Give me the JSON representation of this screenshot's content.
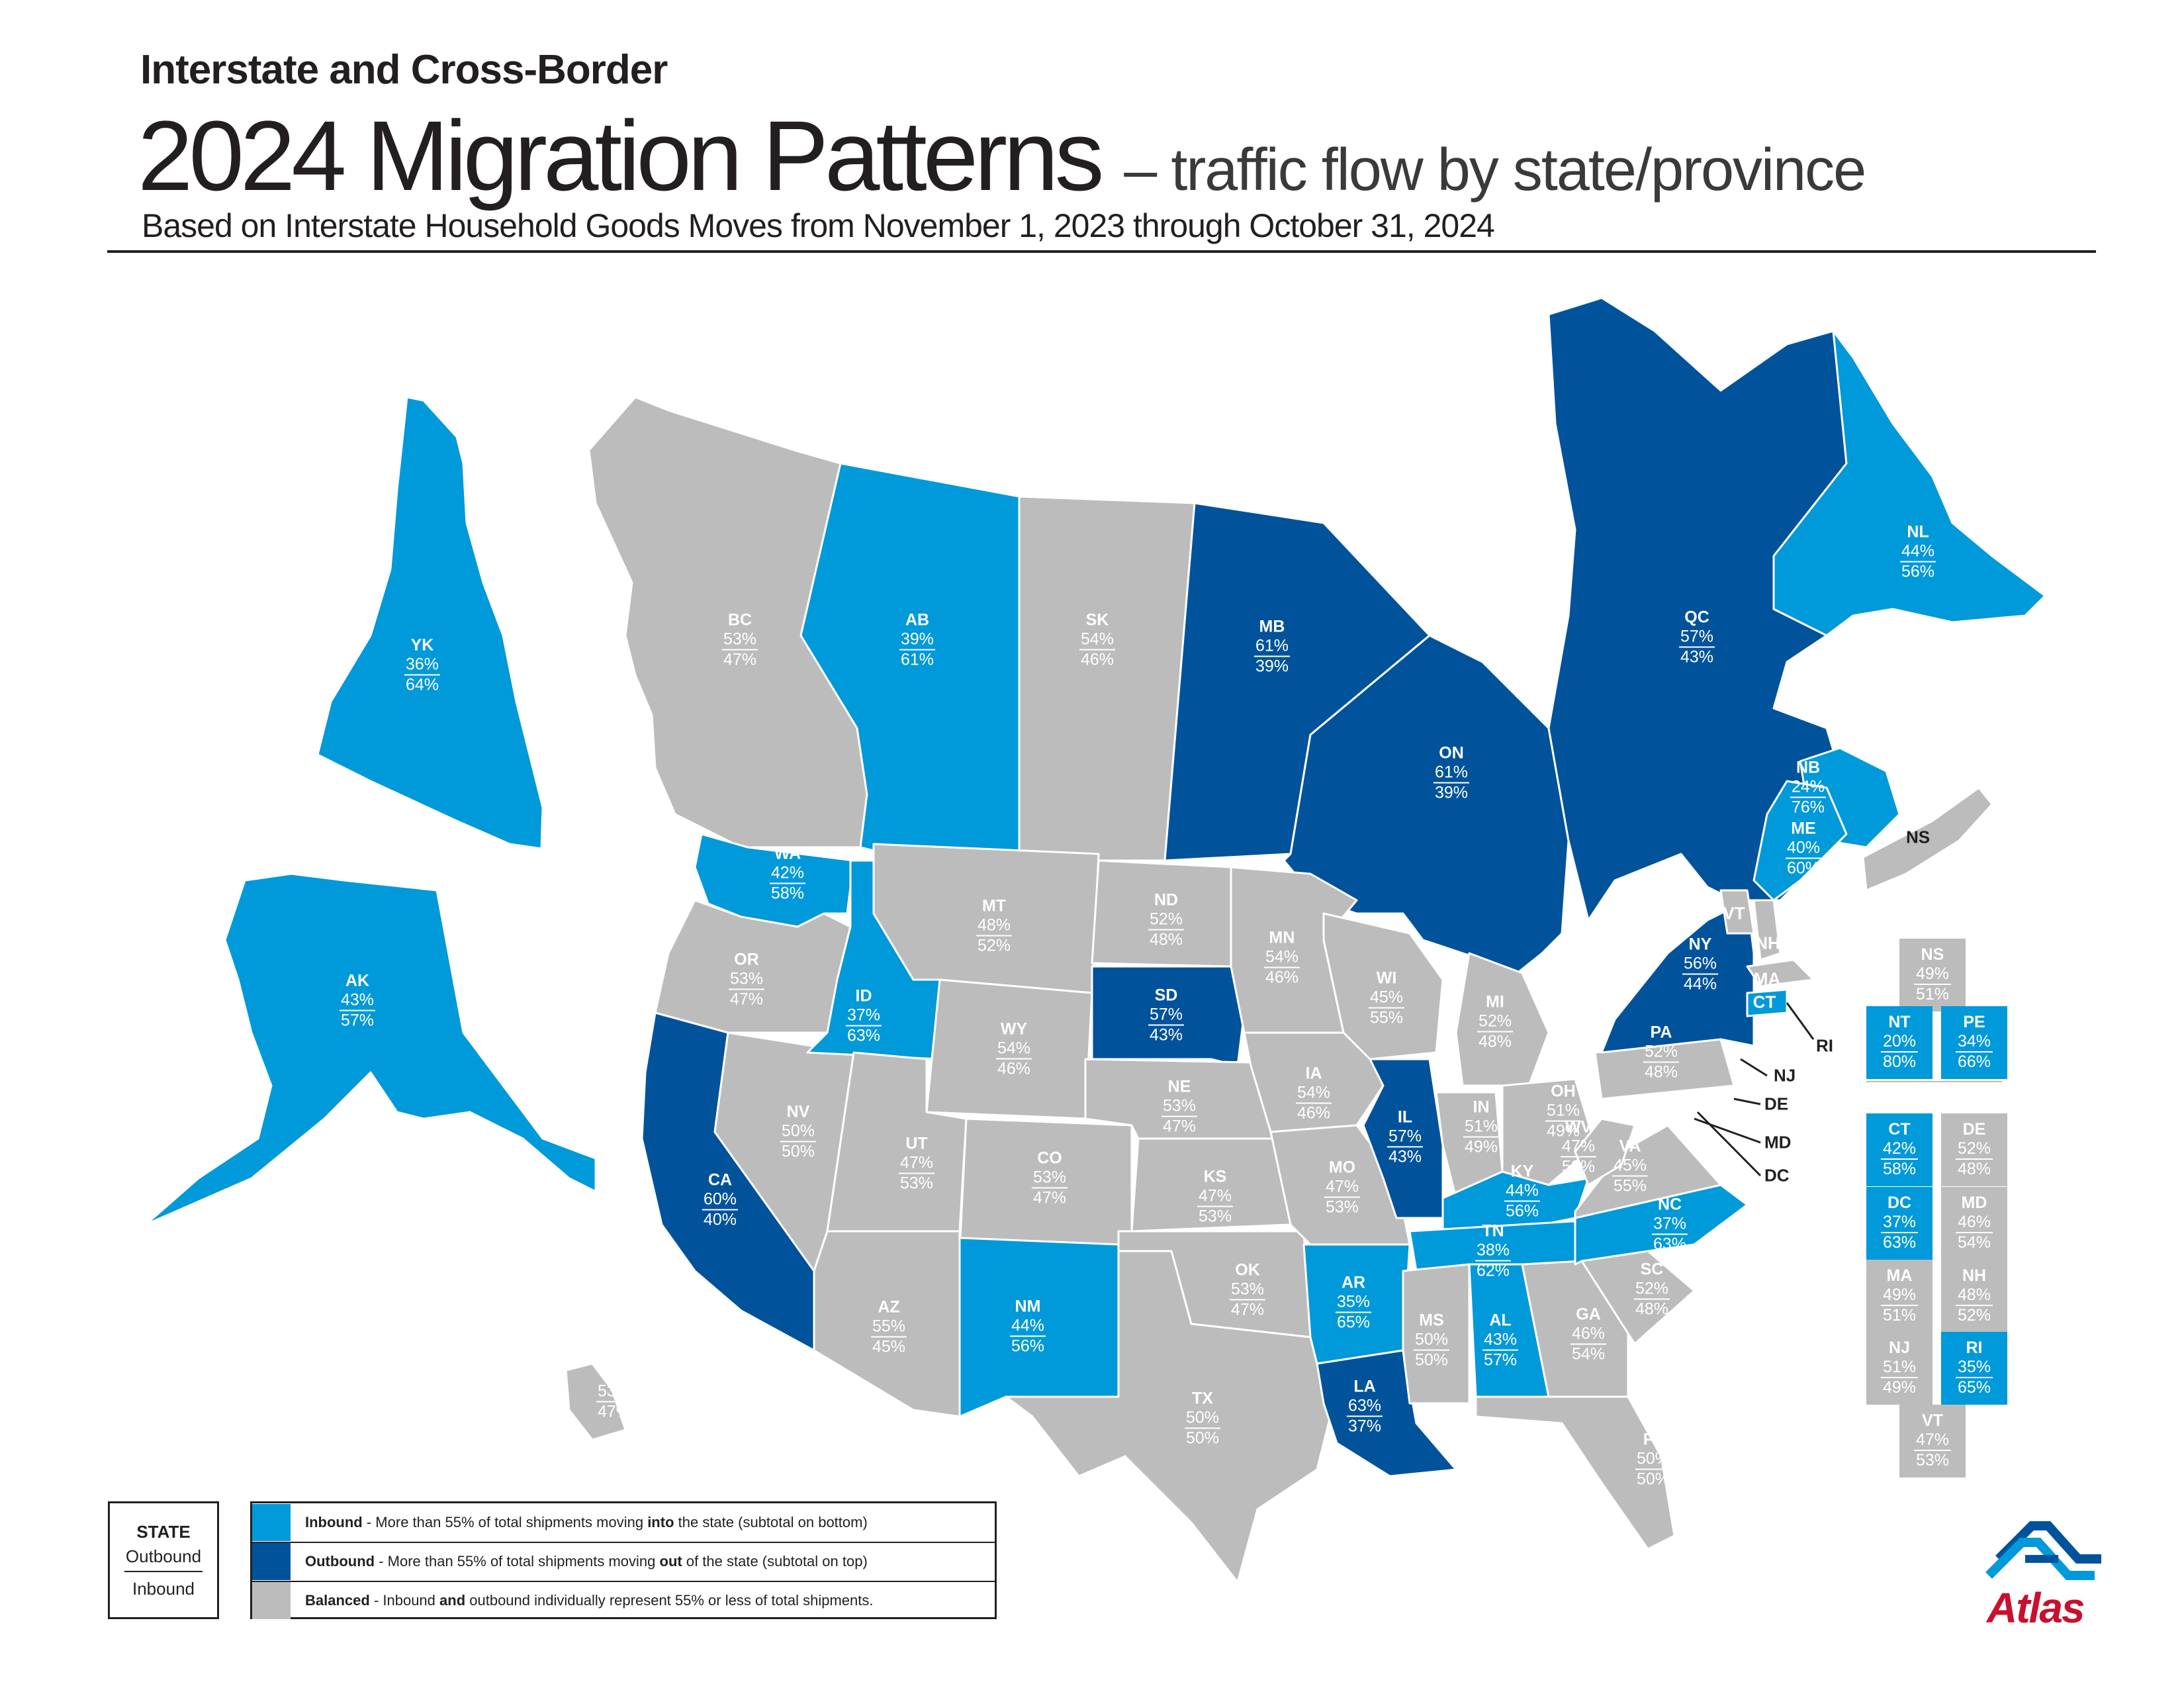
{
  "header": {
    "kicker": "Interstate and Cross-Border",
    "title": "2024 Migration Patterns",
    "title_suffix": "– traffic flow by state/province",
    "subtitle": "Based on Interstate Household Goods Moves from November 1, 2023 through October 31, 2024"
  },
  "colors": {
    "inbound": "#0099d9",
    "outbound": "#00539b",
    "balanced": "#bcbcbc",
    "brand_red": "#c8102e"
  },
  "regions": [
    {
      "abbr": "YK",
      "out": "36%",
      "in": "64%",
      "status": "inbound"
    },
    {
      "abbr": "BC",
      "out": "53%",
      "in": "47%",
      "status": "balanced"
    },
    {
      "abbr": "AB",
      "out": "39%",
      "in": "61%",
      "status": "inbound"
    },
    {
      "abbr": "SK",
      "out": "54%",
      "in": "46%",
      "status": "balanced"
    },
    {
      "abbr": "MB",
      "out": "61%",
      "in": "39%",
      "status": "outbound"
    },
    {
      "abbr": "ON",
      "out": "61%",
      "in": "39%",
      "status": "outbound"
    },
    {
      "abbr": "QC",
      "out": "57%",
      "in": "43%",
      "status": "outbound"
    },
    {
      "abbr": "NL",
      "out": "44%",
      "in": "56%",
      "status": "inbound"
    },
    {
      "abbr": "NB",
      "out": "24%",
      "in": "76%",
      "status": "inbound"
    },
    {
      "abbr": "AK",
      "out": "43%",
      "in": "57%",
      "status": "inbound"
    },
    {
      "abbr": "HI",
      "out": "53%",
      "in": "47%",
      "status": "balanced"
    },
    {
      "abbr": "WA",
      "out": "42%",
      "in": "58%",
      "status": "inbound"
    },
    {
      "abbr": "OR",
      "out": "53%",
      "in": "47%",
      "status": "balanced"
    },
    {
      "abbr": "CA",
      "out": "60%",
      "in": "40%",
      "status": "outbound"
    },
    {
      "abbr": "NV",
      "out": "50%",
      "in": "50%",
      "status": "balanced"
    },
    {
      "abbr": "ID",
      "out": "37%",
      "in": "63%",
      "status": "inbound"
    },
    {
      "abbr": "MT",
      "out": "48%",
      "in": "52%",
      "status": "balanced"
    },
    {
      "abbr": "WY",
      "out": "54%",
      "in": "46%",
      "status": "balanced"
    },
    {
      "abbr": "UT",
      "out": "47%",
      "in": "53%",
      "status": "balanced"
    },
    {
      "abbr": "AZ",
      "out": "55%",
      "in": "45%",
      "status": "balanced"
    },
    {
      "abbr": "CO",
      "out": "53%",
      "in": "47%",
      "status": "balanced"
    },
    {
      "abbr": "NM",
      "out": "44%",
      "in": "56%",
      "status": "inbound"
    },
    {
      "abbr": "ND",
      "out": "52%",
      "in": "48%",
      "status": "balanced"
    },
    {
      "abbr": "SD",
      "out": "57%",
      "in": "43%",
      "status": "outbound"
    },
    {
      "abbr": "NE",
      "out": "53%",
      "in": "47%",
      "status": "balanced"
    },
    {
      "abbr": "KS",
      "out": "47%",
      "in": "53%",
      "status": "balanced"
    },
    {
      "abbr": "OK",
      "out": "53%",
      "in": "47%",
      "status": "balanced"
    },
    {
      "abbr": "TX",
      "out": "50%",
      "in": "50%",
      "status": "balanced"
    },
    {
      "abbr": "MN",
      "out": "54%",
      "in": "46%",
      "status": "balanced"
    },
    {
      "abbr": "IA",
      "out": "54%",
      "in": "46%",
      "status": "balanced"
    },
    {
      "abbr": "MO",
      "out": "47%",
      "in": "53%",
      "status": "balanced"
    },
    {
      "abbr": "AR",
      "out": "35%",
      "in": "65%",
      "status": "inbound"
    },
    {
      "abbr": "LA",
      "out": "63%",
      "in": "37%",
      "status": "outbound"
    },
    {
      "abbr": "WI",
      "out": "45%",
      "in": "55%",
      "status": "balanced"
    },
    {
      "abbr": "IL",
      "out": "57%",
      "in": "43%",
      "status": "outbound"
    },
    {
      "abbr": "MI",
      "out": "52%",
      "in": "48%",
      "status": "balanced"
    },
    {
      "abbr": "IN",
      "out": "51%",
      "in": "49%",
      "status": "balanced"
    },
    {
      "abbr": "OH",
      "out": "51%",
      "in": "49%",
      "status": "balanced"
    },
    {
      "abbr": "KY",
      "out": "44%",
      "in": "56%",
      "status": "inbound"
    },
    {
      "abbr": "TN",
      "out": "38%",
      "in": "62%",
      "status": "inbound"
    },
    {
      "abbr": "MS",
      "out": "50%",
      "in": "50%",
      "status": "balanced"
    },
    {
      "abbr": "AL",
      "out": "43%",
      "in": "57%",
      "status": "inbound"
    },
    {
      "abbr": "GA",
      "out": "46%",
      "in": "54%",
      "status": "balanced"
    },
    {
      "abbr": "FL",
      "out": "50%",
      "in": "50%",
      "status": "balanced"
    },
    {
      "abbr": "SC",
      "out": "52%",
      "in": "48%",
      "status": "balanced"
    },
    {
      "abbr": "NC",
      "out": "37%",
      "in": "63%",
      "status": "inbound"
    },
    {
      "abbr": "VA",
      "out": "45%",
      "in": "55%",
      "status": "balanced"
    },
    {
      "abbr": "WV",
      "out": "47%",
      "in": "53%",
      "status": "balanced"
    },
    {
      "abbr": "PA",
      "out": "52%",
      "in": "48%",
      "status": "balanced"
    },
    {
      "abbr": "NY",
      "out": "56%",
      "in": "44%",
      "status": "outbound"
    },
    {
      "abbr": "ME",
      "out": "40%",
      "in": "60%",
      "status": "inbound"
    }
  ],
  "map_tags": [
    "VT",
    "NH",
    "MA",
    "CT",
    "NS"
  ],
  "callouts": [
    "RI",
    "NJ",
    "DE",
    "MD",
    "DC"
  ],
  "small_boxes": [
    {
      "abbr": "NS",
      "out": "49%",
      "in": "51%",
      "status": "balanced"
    },
    {
      "abbr": "NT",
      "out": "20%",
      "in": "80%",
      "status": "inbound"
    },
    {
      "abbr": "PE",
      "out": "34%",
      "in": "66%",
      "status": "inbound"
    },
    {
      "abbr": "CT",
      "out": "42%",
      "in": "58%",
      "status": "inbound"
    },
    {
      "abbr": "DE",
      "out": "52%",
      "in": "48%",
      "status": "balanced"
    },
    {
      "abbr": "DC",
      "out": "37%",
      "in": "63%",
      "status": "inbound"
    },
    {
      "abbr": "MD",
      "out": "46%",
      "in": "54%",
      "status": "balanced"
    },
    {
      "abbr": "MA",
      "out": "49%",
      "in": "51%",
      "status": "balanced"
    },
    {
      "abbr": "NH",
      "out": "48%",
      "in": "52%",
      "status": "balanced"
    },
    {
      "abbr": "NJ",
      "out": "51%",
      "in": "49%",
      "status": "balanced"
    },
    {
      "abbr": "RI",
      "out": "35%",
      "in": "65%",
      "status": "inbound"
    },
    {
      "abbr": "VT",
      "out": "47%",
      "in": "53%",
      "status": "balanced"
    }
  ],
  "key": {
    "state": "STATE",
    "outbound": "Outbound",
    "inbound": "Inbound"
  },
  "legend": [
    {
      "lead": "Inbound",
      "pre": " - More than 55% of total shipments moving ",
      "bold": "into",
      "post": " the state (subtotal on bottom)",
      "status": "inbound"
    },
    {
      "lead": "Outbound",
      "pre": " - More than 55% of total shipments moving ",
      "bold": "out",
      "post": " of the state (subtotal on top)",
      "status": "outbound"
    },
    {
      "lead": "Balanced",
      "pre": " - Inbound ",
      "bold": "and",
      "post": " outbound individually represent 55% or less of total shipments.",
      "status": "balanced"
    }
  ],
  "brand": {
    "name": "Atlas"
  }
}
